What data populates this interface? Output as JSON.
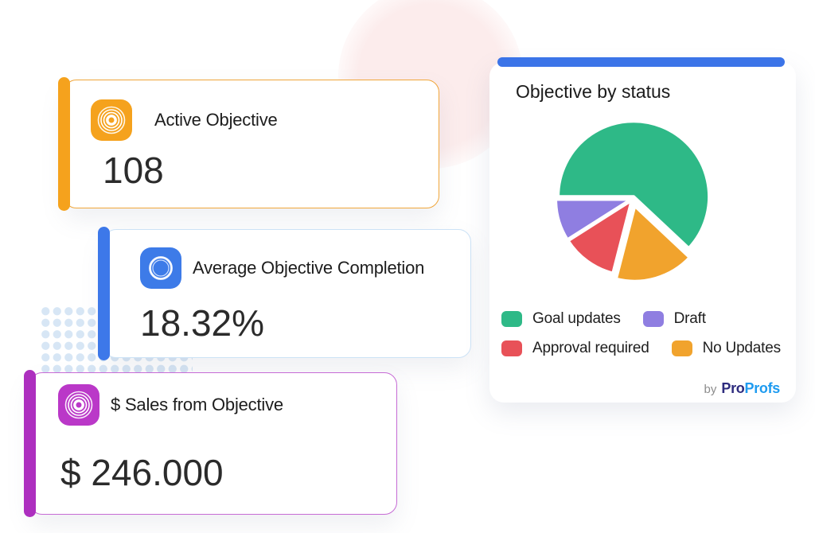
{
  "decor": {
    "circle_color": "#FCECEC",
    "dot_color": "#D7E6F5"
  },
  "cards": [
    {
      "label": "Active Objective",
      "value": "108",
      "accent_color": "#F5A21D",
      "border_color": "#F0A63A",
      "icon_color": "#F5A21D",
      "icon": "target-ripple-icon"
    },
    {
      "label": "Average Objective Completion",
      "value": "18.32%",
      "accent_color": "#3D78E9",
      "border_color": "#CCE2F6",
      "icon_color": "#3D7BE8",
      "icon": "circle-ring-icon"
    },
    {
      "label": "$ Sales from Objective",
      "value": "$ 246.000",
      "accent_color": "#AD2FBF",
      "border_color": "#C66BD5",
      "icon_color": "#BA38C8",
      "icon": "target-ripple-icon"
    }
  ],
  "chart_card": {
    "title": "Objective by status",
    "top_bar_color": "#3B74E8",
    "branding": {
      "by": "by",
      "pro": "Pro",
      "profs": "Profs",
      "by_color": "#8C8C8C",
      "pro_color": "#2D2B7E",
      "profs_color": "#1E9BF0"
    }
  },
  "chart_data": {
    "type": "pie",
    "title": "Objective by status",
    "unit": "percent",
    "values_shown_on_chart": false,
    "start_angle_deg": 270,
    "slice_gap_color": "#FFFFFF",
    "legend_position": "bottom",
    "slices": [
      {
        "label": "Goal updates",
        "value": 62,
        "color": "#2EB987",
        "explode": 3
      },
      {
        "label": "No Updates",
        "value": 17,
        "color": "#F1A32D",
        "explode": 9
      },
      {
        "label": "Approval required",
        "value": 12,
        "color": "#E85158",
        "explode": 2
      },
      {
        "label": "Draft",
        "value": 9,
        "color": "#8F7EE1",
        "explode": 2
      }
    ],
    "legend_rows": [
      [
        0,
        3
      ],
      [
        2,
        1
      ]
    ]
  }
}
